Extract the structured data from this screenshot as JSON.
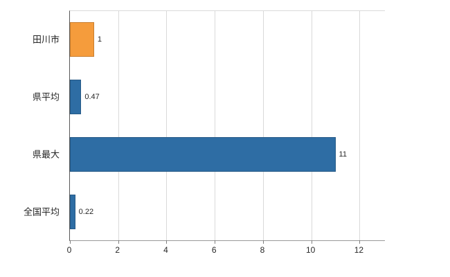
{
  "chart_data": {
    "type": "bar",
    "orientation": "horizontal",
    "title": "",
    "xlabel": "",
    "ylabel": "",
    "categories": [
      "田川市",
      "県平均",
      "県最大",
      "全国平均"
    ],
    "values": [
      1,
      0.47,
      11,
      0.22
    ],
    "value_labels": [
      "1",
      "0.47",
      "11",
      "0.22"
    ],
    "bar_colors": [
      "#f59c3c",
      "#2e6da4",
      "#2e6da4",
      "#2e6da4"
    ],
    "x_ticks": [
      0,
      2,
      4,
      6,
      8,
      10,
      12
    ],
    "xlim": [
      0,
      13.05
    ],
    "grid": "vertical",
    "legend": "none"
  },
  "colors": {
    "background": "#ffffff",
    "grid": "#d9d9d9",
    "axis": "#595959",
    "text": "#262626",
    "accent_orange": "#f59c3c",
    "accent_blue": "#2e6da4"
  }
}
